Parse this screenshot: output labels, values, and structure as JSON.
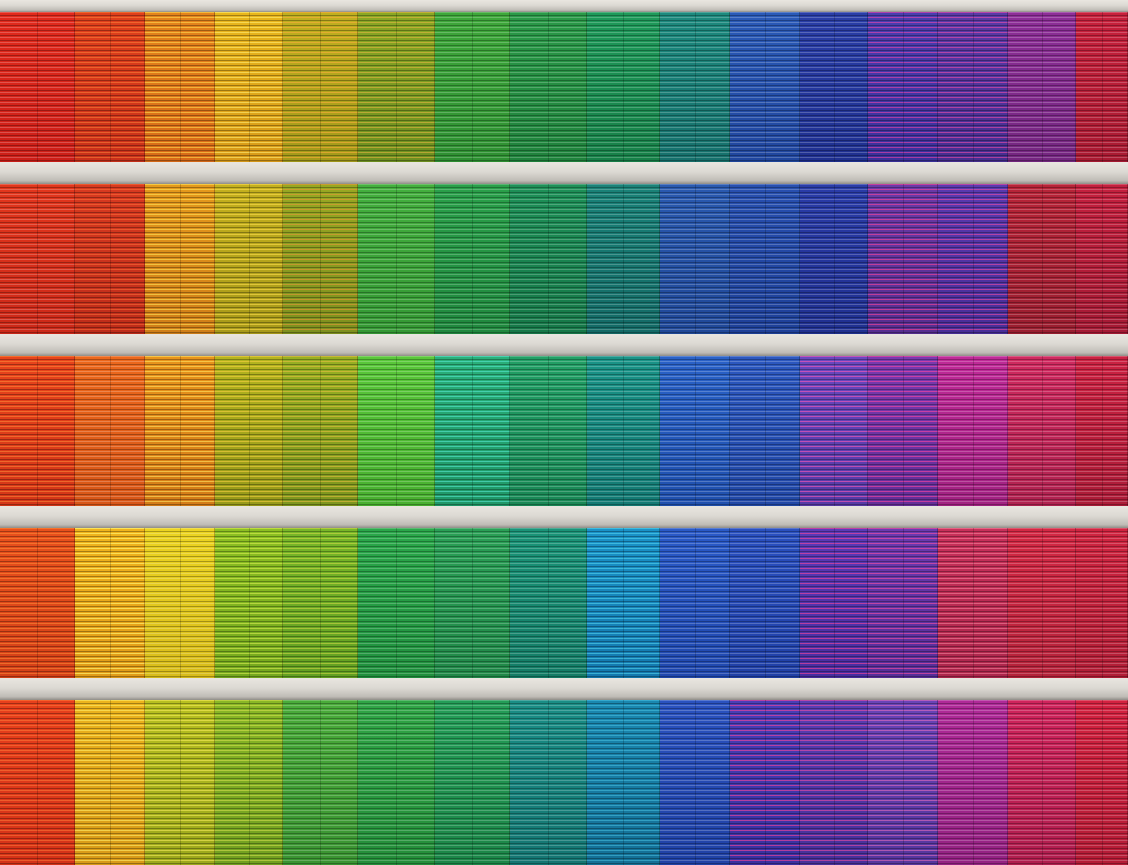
{
  "image": {
    "subject": "building-facade",
    "palette": {
      "red": "#e0241c",
      "orange": "#ec5a1a",
      "yellow": "#e8c21a",
      "lime": "#8fc424",
      "green": "#2aa84a",
      "teal": "#1d9f7a",
      "cyan": "#1a8fc0",
      "blue": "#2a55c8",
      "violet": "#6a3ab4",
      "magenta": "#c02a8a",
      "crimson": "#d01e3c",
      "frame": "#dcd9d3"
    }
  }
}
